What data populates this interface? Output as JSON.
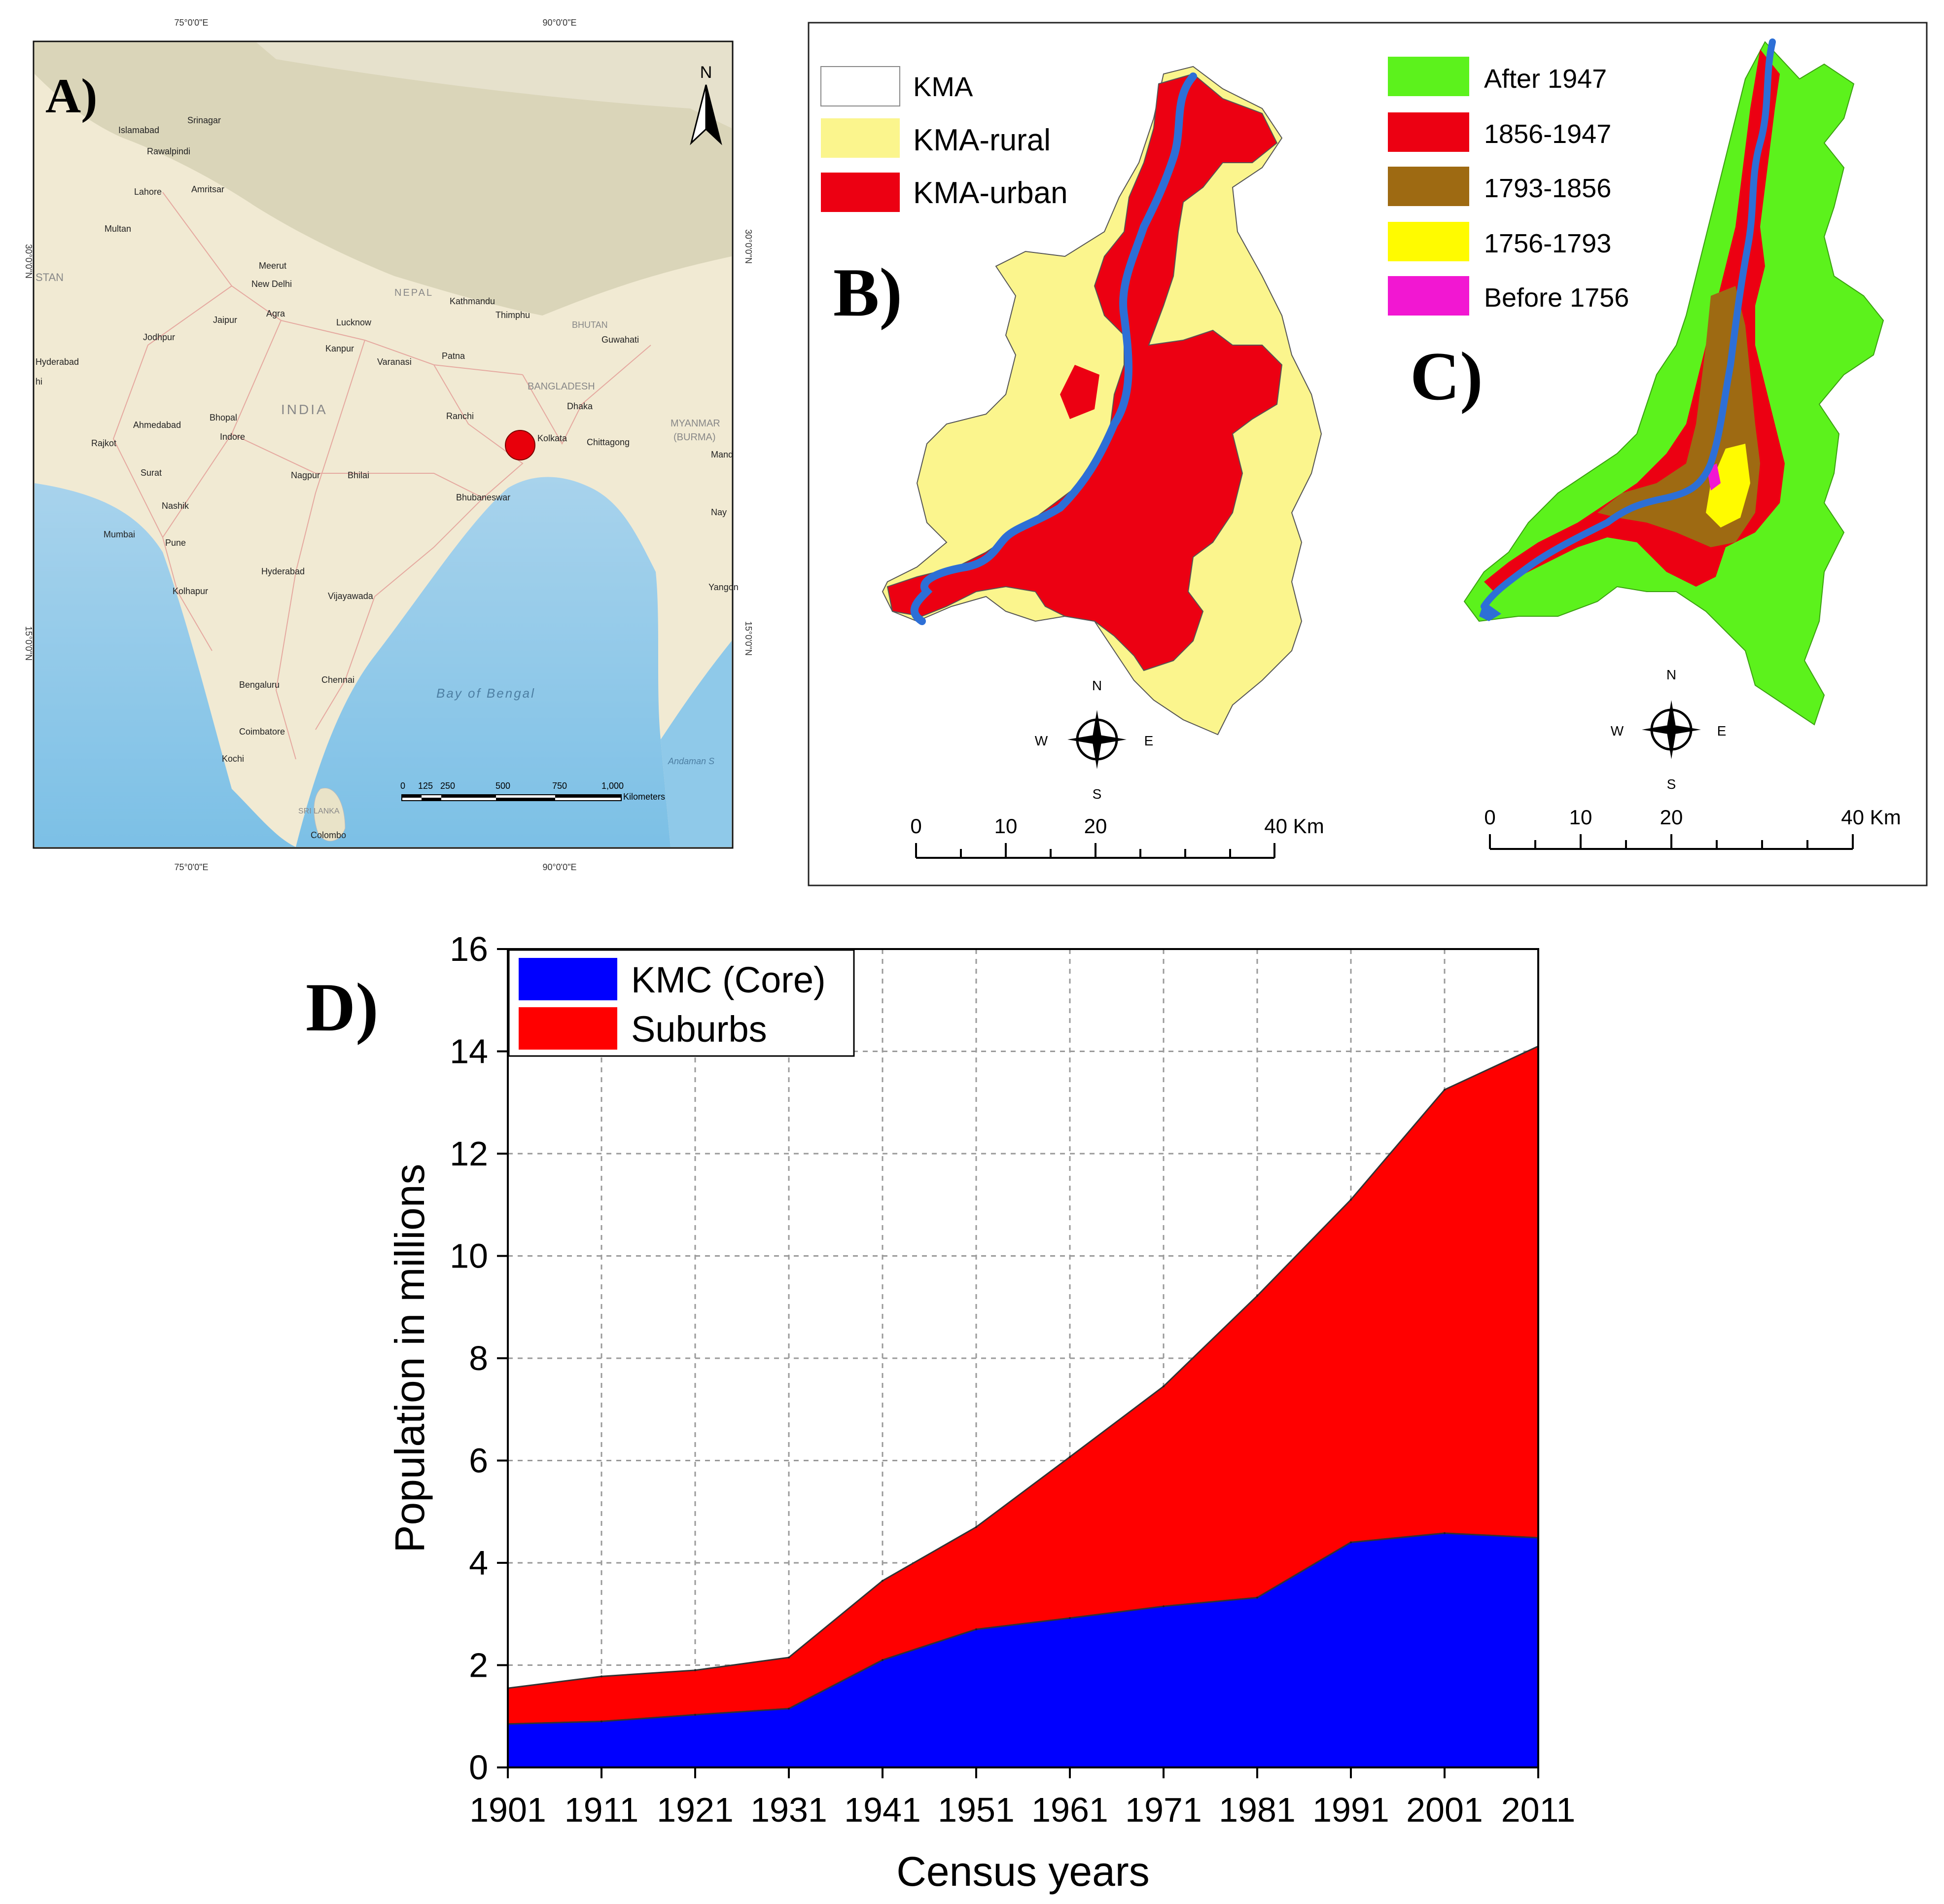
{
  "panel_a": {
    "label": "A)",
    "north": "N",
    "lon_labels": [
      "75°0'0\"E",
      "90°0'0\"E",
      "75°0'0\"E",
      "90°0'0\"E"
    ],
    "lat_labels": [
      "30°0'0\"N",
      "15°0'0\"N",
      "30°0'0\"N",
      "15°0'0\"N"
    ],
    "countries": [
      "INDIA",
      "NEPAL",
      "BHUTAN",
      "BANGLADESH",
      "MYANMAR",
      "(BURMA)",
      "STAN",
      "SRI LANKA"
    ],
    "water": [
      "Bay  of  Bengal",
      "Andaman S"
    ],
    "cities": [
      "Srinagar",
      "Islamabad",
      "Rawalpindi",
      "Lahore",
      "Amritsar",
      "Multan",
      "Meerut",
      "New Delhi",
      "Jaipur",
      "Agra",
      "Lucknow",
      "Kanpur",
      "Varanasi",
      "Patna",
      "Kathmandu",
      "Thimphu",
      "Guwahati",
      "Jodhpur",
      "Hyderabad",
      "Ahmedabad",
      "Bhopal",
      "Indore",
      "Rajkot",
      "Surat",
      "Ranchi",
      "Kolkata",
      "Dhaka",
      "Chittagong",
      "Nagpur",
      "Bhilai",
      "Bhubaneswar",
      "Nashik",
      "Mumbai",
      "Pune",
      "Kolhapur",
      "Hyderabad",
      "Vijayawada",
      "Bengaluru",
      "Chennai",
      "Coimbatore",
      "Kochi",
      "Colombo",
      "Yangon",
      "Mand",
      "Nay",
      "hi"
    ],
    "scale_ticks": [
      "0",
      "125",
      "250",
      "500",
      "750",
      "1,000"
    ],
    "scale_unit": "Kilometers",
    "marker_color": "#e8000b"
  },
  "panel_b": {
    "label": "B)",
    "legend": [
      {
        "label": "KMA",
        "color": "#ffffff"
      },
      {
        "label": "KMA-rural",
        "color": "#fbf58d"
      },
      {
        "label": "KMA-urban",
        "color": "#ec0012"
      }
    ],
    "compass": {
      "n": "N",
      "s": "S",
      "e": "E",
      "w": "W"
    },
    "scale_ticks": [
      "0",
      "10",
      "20",
      "40 Km"
    ]
  },
  "panel_c": {
    "label": "C)",
    "legend": [
      {
        "label": "After 1947",
        "color": "#5cf21c"
      },
      {
        "label": "1856-1947",
        "color": "#ec0012"
      },
      {
        "label": "1793-1856",
        "color": "#9e6a12"
      },
      {
        "label": "1756-1793",
        "color": "#fffb00"
      },
      {
        "label": "Before 1756",
        "color": "#f217d2"
      }
    ],
    "compass": {
      "n": "N",
      "s": "S",
      "e": "E",
      "w": "W"
    },
    "scale_ticks": [
      "0",
      "10",
      "20",
      "40 Km"
    ]
  },
  "panel_d": {
    "label": "D)"
  },
  "chart_data": {
    "type": "area",
    "stacked": true,
    "categories": [
      "1901",
      "1911",
      "1921",
      "1931",
      "1941",
      "1951",
      "1961",
      "1971",
      "1981",
      "1991",
      "2001",
      "2011"
    ],
    "series": [
      {
        "name": "KMC (Core)",
        "color": "#0000ff",
        "values": [
          0.85,
          0.9,
          1.03,
          1.15,
          2.1,
          2.7,
          2.92,
          3.15,
          3.32,
          4.4,
          4.58,
          4.49
        ]
      },
      {
        "name": "Suburbs",
        "color": "#ff0000",
        "values": [
          0.7,
          0.88,
          0.87,
          1.0,
          1.55,
          2.0,
          3.15,
          4.3,
          5.9,
          6.7,
          8.67,
          9.61
        ]
      }
    ],
    "xlabel": "Census years",
    "ylabel": "Population in millions",
    "ylim": [
      0,
      16
    ],
    "yticks": [
      "0",
      "2",
      "4",
      "6",
      "8",
      "10",
      "12",
      "14",
      "16"
    ],
    "grid": true,
    "legend_position": "top-left"
  }
}
